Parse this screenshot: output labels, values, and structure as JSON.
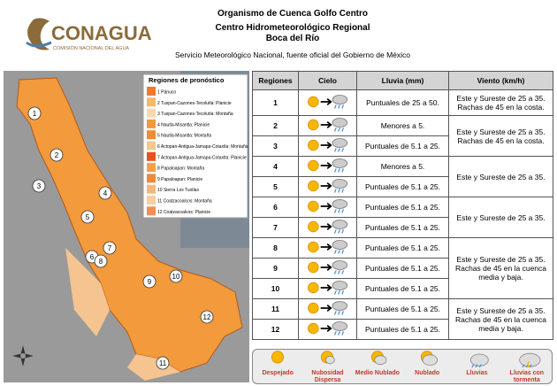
{
  "header": {
    "logo": "CONAGUA",
    "logo_sub": "COMISIÓN NACIONAL DEL AGUA",
    "title": "Organismo de Cuenca Golfo Centro",
    "subtitle": "Centro Hidrometeorológico Regional",
    "city": "Boca del Río",
    "source": "Servicio Meteorológico Nacional, fuente oficial del Gobierno de México"
  },
  "map": {
    "legend_title": "Regiones de pronóstico",
    "regions": [
      {
        "label": "1 Pánuco",
        "color": "#f07a2a"
      },
      {
        "label": "2 Tuxpan-Cazones-Tecolutla: Planicie",
        "color": "#f5b96a"
      },
      {
        "label": "3 Tuxpan-Cazones-Tecolutla: Montaña",
        "color": "#f8d9ae"
      },
      {
        "label": "4 Nautla-Misantla: Planicie",
        "color": "#f29a3c"
      },
      {
        "label": "5 Nautla-Misantla: Montaña",
        "color": "#f48a2e"
      },
      {
        "label": "6 Actopan-Antigua-Jamapa-Cotaxtla: Montaña",
        "color": "#f5c88c"
      },
      {
        "label": "7 Actopan-Antigua-Jamapa-Cotaxtla: Planicie",
        "color": "#e6541e"
      },
      {
        "label": "8 Papaloapan: Montaña",
        "color": "#f3a04c"
      },
      {
        "label": "9 Papaloapan: Planicie",
        "color": "#ee8a3a"
      },
      {
        "label": "10 Sierra Los Tuxtlas",
        "color": "#f6b878"
      },
      {
        "label": "11 Coatzacoalcos: Montaña",
        "color": "#f8cfa0"
      },
      {
        "label": "12 Coatzacoalcos: Planicie",
        "color": "#f29050"
      }
    ],
    "markers": [
      "1",
      "2",
      "3",
      "4",
      "5",
      "6",
      "7",
      "8",
      "9",
      "10",
      "11",
      "12"
    ]
  },
  "table": {
    "headers": [
      "Regiones",
      "Cielo",
      "Lluvia (mm)",
      "Viento (km/h)"
    ],
    "rows": [
      {
        "region": "1",
        "rain": "Puntuales de 25 a 50.",
        "wind": "Este y Sureste de 25 a 35. Rachas de 45 en la costa."
      },
      {
        "region": "2",
        "rain": "Menores a 5.",
        "wind": "Este y Sureste de 25 a 35. Rachas de 45 en la costa."
      },
      {
        "region": "3",
        "rain": "Puntuales de 5.1 a 25."
      },
      {
        "region": "4",
        "rain": "Menores a 5.",
        "wind": "Este y Sureste de 25 a 35."
      },
      {
        "region": "5",
        "rain": "Puntuales de 5.1 a 25."
      },
      {
        "region": "6",
        "rain": "Puntuales de 5.1 a 25.",
        "wind": "Este y Sureste de 25 a 35."
      },
      {
        "region": "7",
        "rain": "Puntuales de 5.1 a 25."
      },
      {
        "region": "8",
        "rain": "Puntuales de 5.1 a 25.",
        "wind": "Este y Sureste de 25 a 35. Rachas de 45 en la cuenca media y baja."
      },
      {
        "region": "9",
        "rain": "Puntuales de 5.1 a 25."
      },
      {
        "region": "10",
        "rain": "Puntuales de 5.1 a 25."
      },
      {
        "region": "11",
        "rain": "Puntuales de 5.1 a 25.",
        "wind": "Este y Sureste de 25 a 35. Rachas de 45 en la cuenca media y baja."
      },
      {
        "region": "12",
        "rain": "Puntuales de 5.1 a 25."
      }
    ]
  },
  "sky_legend": [
    "Despejado",
    "Nubosidad Dispersa",
    "Medio Nublado",
    "Nublado",
    "Lluvias",
    "Lluvias con tormenta"
  ]
}
